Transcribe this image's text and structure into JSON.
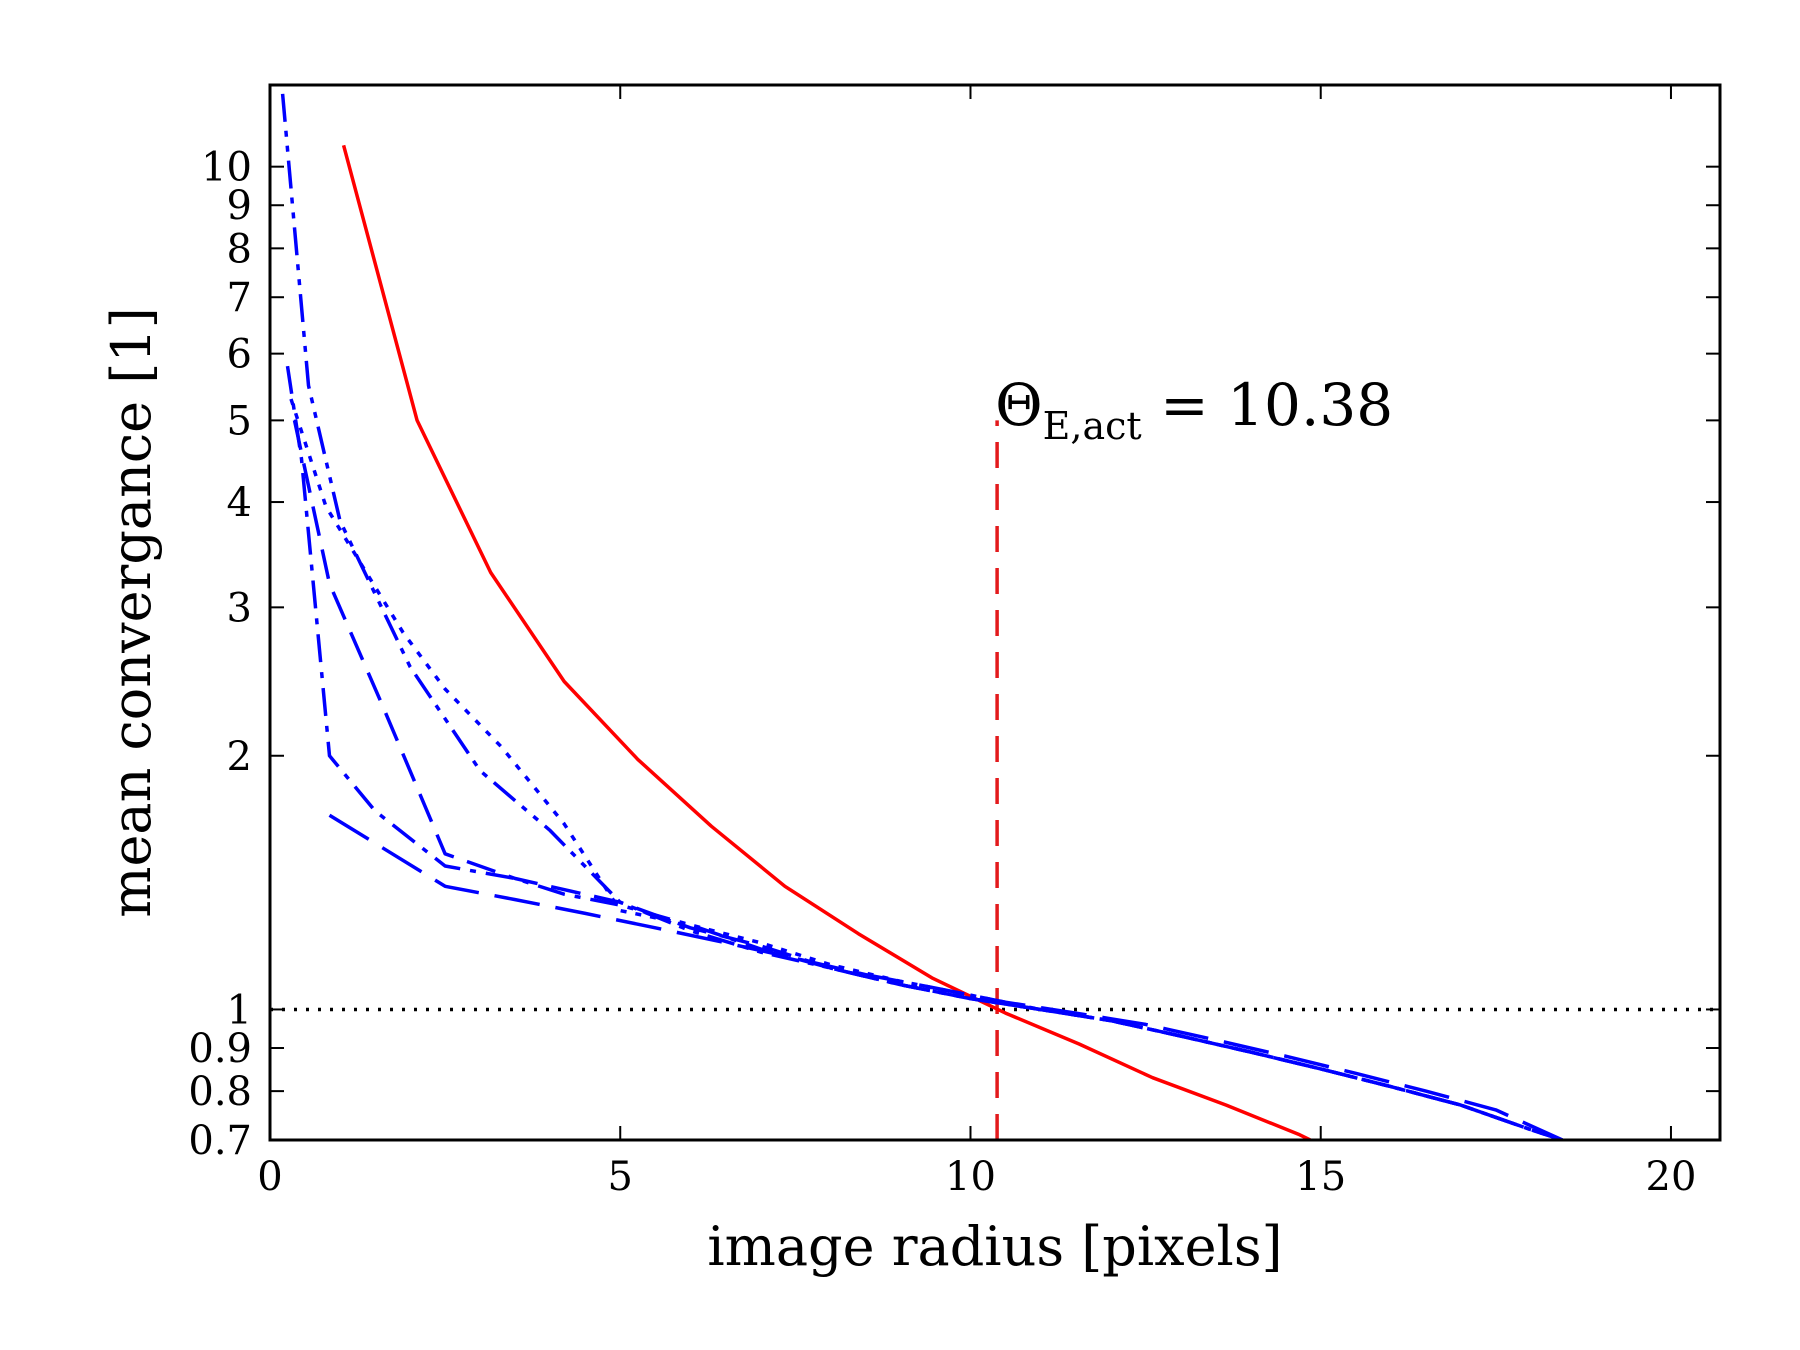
{
  "chart_data": {
    "type": "line",
    "xlabel": "image radius [pixels]",
    "ylabel": "mean convergance [1]",
    "xlim": [
      0,
      20.7
    ],
    "ylim": [
      0.7,
      12.5
    ],
    "yscale": "log",
    "grid": false,
    "xticks": [
      0,
      5,
      10,
      15,
      20
    ],
    "xtick_labels": [
      "0",
      "5",
      "10",
      "15",
      "20"
    ],
    "yticks": [
      0.7,
      0.8,
      0.9,
      1,
      2,
      3,
      4,
      5,
      6,
      7,
      8,
      9,
      10
    ],
    "ytick_labels": [
      "0.7",
      "0.8",
      "0.9",
      "1",
      "2",
      "3",
      "4",
      "5",
      "6",
      "7",
      "8",
      "9",
      "10"
    ],
    "annotation": {
      "main": "Θ",
      "sub": "E,act",
      "rest": " = 10.38",
      "x": 10.38
    },
    "reference_lines": [
      {
        "orientation": "vertical",
        "x": 10.38,
        "y_range": [
          0.7,
          5.0
        ],
        "color": "#e31a1c",
        "style": "dashed"
      },
      {
        "orientation": "horizontal",
        "y": 1.0,
        "color": "#000000",
        "style": "dotted"
      }
    ],
    "series": [
      {
        "color": "#ff0000",
        "style": "solid",
        "x": [
          1.05,
          2.1,
          3.15,
          4.2,
          5.25,
          6.3,
          7.35,
          8.4,
          9.45,
          10.5,
          11.55,
          12.6,
          13.65,
          14.7,
          14.85
        ],
        "y": [
          10.6,
          5.0,
          3.3,
          2.45,
          1.98,
          1.65,
          1.4,
          1.23,
          1.09,
          0.99,
          0.91,
          0.83,
          0.77,
          0.71,
          0.7
        ]
      },
      {
        "color": "#0000ff",
        "style": "dashdotdot",
        "x": [
          0.18,
          0.55,
          1.0,
          2.0,
          3.0,
          4.0,
          5.0,
          6.0,
          7.0,
          8.0,
          9.0,
          10.0,
          11.0,
          12.0,
          13.0,
          14.0,
          15.0,
          16.0,
          17.0,
          18.0,
          18.45
        ],
        "y": [
          12.2,
          5.5,
          3.8,
          2.55,
          1.92,
          1.63,
          1.34,
          1.24,
          1.17,
          1.12,
          1.07,
          1.03,
          1.0,
          0.97,
          0.93,
          0.89,
          0.85,
          0.81,
          0.77,
          0.72,
          0.7
        ]
      },
      {
        "color": "#0000ff",
        "style": "dashdot",
        "x": [
          0.25,
          0.45,
          0.85,
          1.5,
          2.5,
          3.5,
          4.2,
          5.0,
          6.0,
          7.0,
          8.0,
          9.0,
          10.0,
          11.0,
          12.0,
          13.0,
          14.0,
          15.0,
          16.0,
          17.0,
          18.0,
          18.45
        ],
        "y": [
          5.8,
          4.5,
          2.0,
          1.72,
          1.48,
          1.43,
          1.37,
          1.33,
          1.26,
          1.18,
          1.12,
          1.07,
          1.03,
          1.0,
          0.97,
          0.93,
          0.89,
          0.85,
          0.81,
          0.77,
          0.72,
          0.7
        ]
      },
      {
        "color": "#0000ff",
        "style": "dashed",
        "x": [
          0.35,
          0.85,
          1.6,
          2.5,
          3.5,
          5.0,
          6.0,
          7.0,
          8.0,
          9.0,
          10.0,
          11.0,
          12.0,
          13.0,
          14.0,
          15.0,
          16.0,
          17.0,
          18.0,
          18.45
        ],
        "y": [
          5.0,
          3.2,
          2.3,
          1.53,
          1.43,
          1.34,
          1.25,
          1.19,
          1.12,
          1.07,
          1.03,
          1.0,
          0.97,
          0.93,
          0.89,
          0.85,
          0.81,
          0.77,
          0.72,
          0.7
        ]
      },
      {
        "color": "#0000ff",
        "style": "dotted",
        "x": [
          0.3,
          0.8,
          1.9,
          2.5,
          3.3,
          4.2,
          5.0,
          6.0,
          7.0,
          8.0,
          9.0,
          10.0,
          11.0,
          12.0,
          13.0,
          14.0,
          15.0,
          16.0,
          17.0,
          18.0,
          18.45
        ],
        "y": [
          5.3,
          3.95,
          2.8,
          2.4,
          2.05,
          1.66,
          1.31,
          1.26,
          1.2,
          1.13,
          1.08,
          1.04,
          1.0,
          0.97,
          0.93,
          0.89,
          0.85,
          0.81,
          0.77,
          0.72,
          0.7
        ]
      },
      {
        "color": "#0000ff",
        "style": "dashlong",
        "x": [
          0.85,
          2.5,
          3.5,
          4.5,
          5.5,
          6.5,
          7.5,
          8.5,
          9.5,
          10.5,
          11.5,
          12.5,
          13.5,
          14.5,
          15.5,
          16.5,
          17.5,
          18.45
        ],
        "y": [
          1.7,
          1.4,
          1.35,
          1.3,
          1.25,
          1.2,
          1.15,
          1.1,
          1.06,
          1.02,
          0.99,
          0.96,
          0.92,
          0.88,
          0.84,
          0.8,
          0.76,
          0.7
        ]
      }
    ]
  }
}
